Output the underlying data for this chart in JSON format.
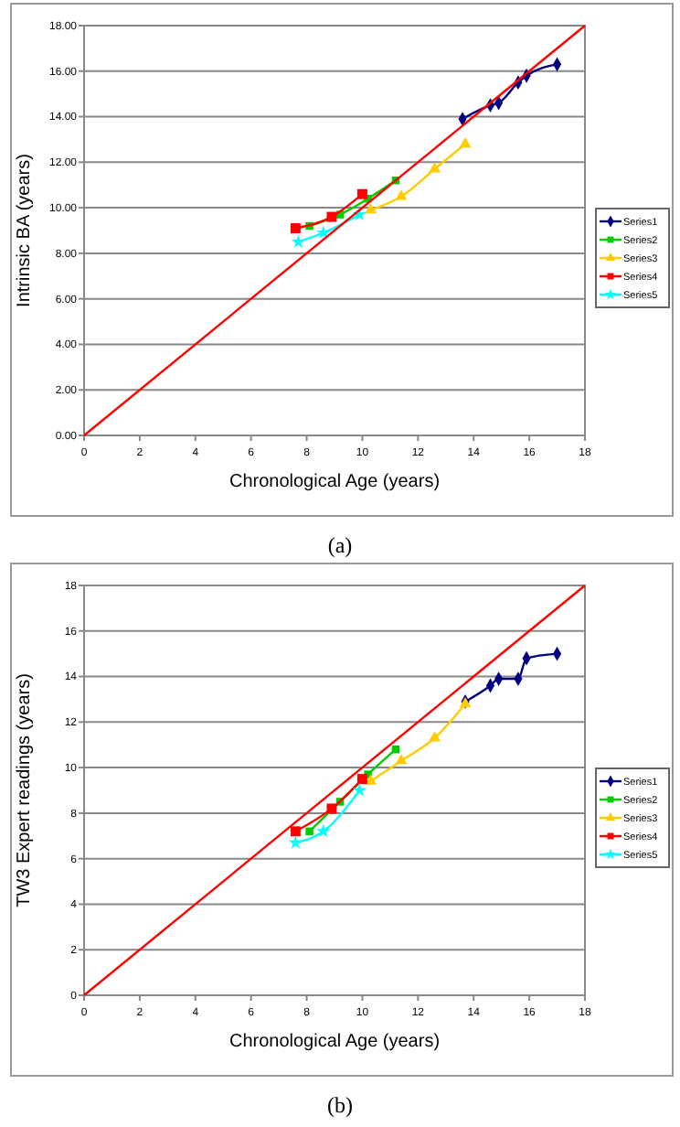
{
  "chart_data": [
    {
      "type": "line",
      "xlabel": "Chronological Age (years)",
      "ylabel": "Intrinsic BA (years)",
      "annotations": [
        "(a)"
      ],
      "xlim": [
        0,
        18
      ],
      "ylim": [
        0,
        18
      ],
      "xticks": [
        0,
        2,
        4,
        6,
        8,
        10,
        12,
        14,
        16,
        18
      ],
      "yticks": [
        {
          "value": 0,
          "label": "0.00"
        },
        {
          "value": 2,
          "label": "2.00"
        },
        {
          "value": 4,
          "label": "4.00"
        },
        {
          "value": 6,
          "label": "6.00"
        },
        {
          "value": 8,
          "label": "8.00"
        },
        {
          "value": 10,
          "label": "10.00"
        },
        {
          "value": 12,
          "label": "12.00"
        },
        {
          "value": 14,
          "label": "14.00"
        },
        {
          "value": 16,
          "label": "16.00"
        },
        {
          "value": 18,
          "label": "18.00"
        }
      ],
      "grid": "y",
      "legend": "right",
      "series": [
        {
          "name": "Series1",
          "color": "#000080",
          "marker": "diamond",
          "x": [
            13.6,
            14.6,
            14.9,
            15.6,
            15.9,
            17.0
          ],
          "values": [
            13.9,
            14.5,
            14.6,
            15.5,
            15.8,
            16.3
          ]
        },
        {
          "name": "Series2",
          "color": "#00cc00",
          "marker": "square",
          "x": [
            8.1,
            9.2,
            10.2,
            11.2
          ],
          "values": [
            9.2,
            9.7,
            10.4,
            11.2
          ]
        },
        {
          "name": "Series3",
          "color": "#ffcc00",
          "marker": "triangle",
          "x": [
            10.3,
            11.4,
            12.6,
            13.7
          ],
          "values": [
            9.9,
            10.5,
            11.7,
            12.8
          ]
        },
        {
          "name": "Series4",
          "color": "#ff0000",
          "marker": "square",
          "x": [
            7.6,
            8.9,
            10.0
          ],
          "values": [
            9.1,
            9.6,
            10.6
          ]
        },
        {
          "name": "Series5",
          "color": "#00ffff",
          "marker": "star",
          "x": [
            7.7,
            8.6,
            9.9
          ],
          "values": [
            8.5,
            8.9,
            9.7
          ]
        },
        {
          "color": "#ff0000",
          "marker": "none",
          "x": [
            0,
            18
          ],
          "values": [
            0,
            18
          ]
        }
      ]
    },
    {
      "type": "line",
      "xlabel": "Chronological Age (years)",
      "ylabel": "TW3 Expert readings (years)",
      "annotations": [
        "(b)"
      ],
      "xlim": [
        0,
        18
      ],
      "ylim": [
        0,
        18
      ],
      "xticks": [
        0,
        2,
        4,
        6,
        8,
        10,
        12,
        14,
        16,
        18
      ],
      "yticks": [
        0,
        2,
        4,
        6,
        8,
        10,
        12,
        14,
        16,
        18
      ],
      "grid": "y",
      "legend": "right",
      "series": [
        {
          "name": "Series1",
          "color": "#000080",
          "marker": "diamond",
          "x": [
            13.7,
            14.6,
            14.9,
            15.6,
            15.9,
            17.0
          ],
          "values": [
            12.9,
            13.6,
            13.9,
            13.9,
            14.8,
            15.0
          ]
        },
        {
          "name": "Series2",
          "color": "#00cc00",
          "marker": "square",
          "x": [
            8.1,
            9.2,
            10.2,
            11.2
          ],
          "values": [
            7.2,
            8.5,
            9.7,
            10.8
          ]
        },
        {
          "name": "Series3",
          "color": "#ffcc00",
          "marker": "triangle",
          "x": [
            10.3,
            11.4,
            12.6,
            13.7
          ],
          "values": [
            9.4,
            10.3,
            11.3,
            12.8
          ]
        },
        {
          "name": "Series4",
          "color": "#ff0000",
          "marker": "square",
          "x": [
            7.6,
            8.9,
            10.0
          ],
          "values": [
            7.2,
            8.2,
            9.5
          ]
        },
        {
          "name": "Series5",
          "color": "#00ffff",
          "marker": "star",
          "x": [
            7.6,
            8.6,
            9.9
          ],
          "values": [
            6.7,
            7.2,
            9.0
          ]
        },
        {
          "color": "#ff0000",
          "marker": "none",
          "x": [
            0,
            18
          ],
          "values": [
            0,
            18
          ]
        }
      ]
    }
  ]
}
